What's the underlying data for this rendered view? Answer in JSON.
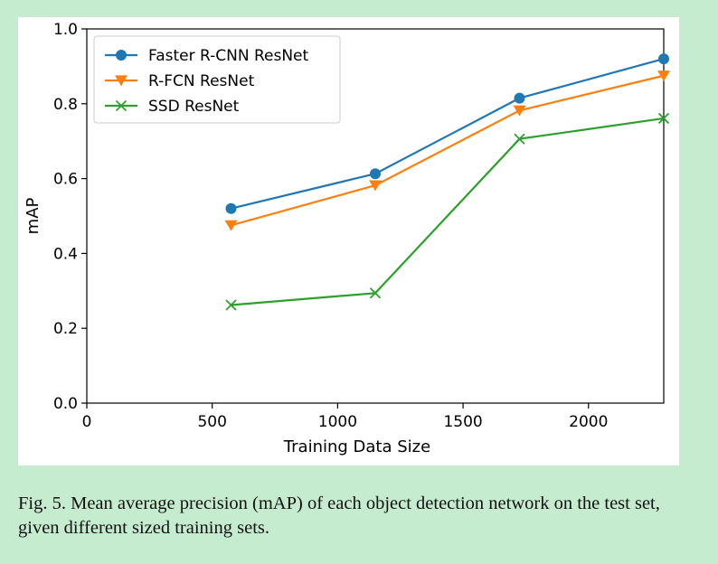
{
  "chart_data": {
    "type": "line",
    "title": "",
    "xlabel": "Training Data Size",
    "ylabel": "mAP",
    "xlim": [
      0,
      2300
    ],
    "ylim": [
      0.0,
      1.0
    ],
    "xticks": [
      0,
      500,
      1000,
      1500,
      2000
    ],
    "yticks": [
      0.0,
      0.2,
      0.4,
      0.6,
      0.8,
      1.0
    ],
    "xtick_labels": [
      "0",
      "500",
      "1000",
      "1500",
      "2000"
    ],
    "ytick_labels": [
      "0.0",
      "0.2",
      "0.4",
      "0.6",
      "0.8",
      "1.0"
    ],
    "grid": false,
    "legend_position": "top-left",
    "series": [
      {
        "name": "Faster R-CNN ResNet",
        "color": "#1f77b4",
        "marker": "circle",
        "x": [
          575,
          1150,
          1725,
          2300
        ],
        "y": [
          0.52,
          0.613,
          0.815,
          0.92
        ]
      },
      {
        "name": "R-FCN ResNet",
        "color": "#ff7f0e",
        "marker": "triangle-down",
        "x": [
          575,
          1150,
          1725,
          2300
        ],
        "y": [
          0.475,
          0.582,
          0.782,
          0.875
        ]
      },
      {
        "name": "SSD ResNet",
        "color": "#2ca02c",
        "marker": "x",
        "x": [
          575,
          1150,
          1725,
          2300
        ],
        "y": [
          0.262,
          0.294,
          0.706,
          0.761
        ]
      }
    ]
  },
  "caption": "Fig. 5. Mean average precision (mAP) of each object detection network on the test set, given different sized training sets."
}
